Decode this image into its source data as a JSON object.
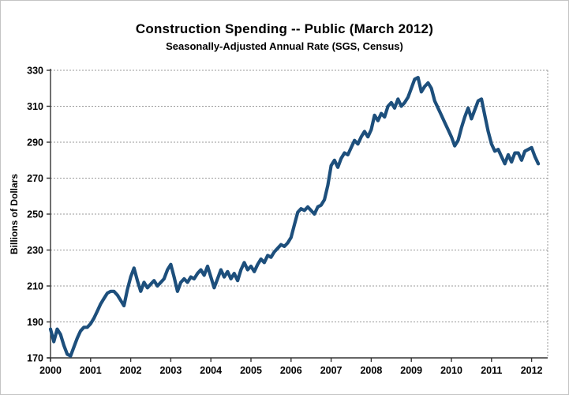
{
  "header": {
    "title": "Construction Spending -- Public (March 2012)",
    "subtitle": "Seasonally-Adjusted Annual Rate (SGS, Census)"
  },
  "chart_data": {
    "type": "line",
    "title": "Construction Spending -- Public (March 2012)",
    "subtitle": "Seasonally-Adjusted Annual Rate (SGS, Census)",
    "ylabel": "Billions of Dollars",
    "xlabel": "",
    "ylim": [
      170,
      330
    ],
    "y_ticks": [
      170,
      190,
      210,
      230,
      250,
      270,
      290,
      310,
      330
    ],
    "x_tick_labels": [
      "2000",
      "2001",
      "2002",
      "2003",
      "2004",
      "2005",
      "2006",
      "2007",
      "2008",
      "2009",
      "2010",
      "2011",
      "2012"
    ],
    "grid": "horizontal dotted gray lines at each y tick; dotted top and right plot border; solid black left and bottom axes",
    "legend": "none",
    "line_color": "#1d4f7c",
    "series": [
      {
        "name": "Public construction spending, seasonally-adjusted annual rate",
        "unit": "billions of dollars",
        "start_month": "2000-01",
        "end_month": "2012-03",
        "values": [
          186,
          179,
          186,
          183,
          177,
          172,
          171,
          176,
          181,
          185,
          187,
          187,
          189,
          192,
          196,
          200,
          203,
          206,
          207,
          207,
          205,
          202,
          199,
          208,
          215,
          220,
          213,
          207,
          212,
          209,
          211,
          213,
          210,
          212,
          214,
          219,
          222,
          215,
          207,
          212,
          214,
          212,
          215,
          214,
          217,
          219,
          216,
          221,
          215,
          209,
          214,
          219,
          215,
          218,
          214,
          217,
          213,
          219,
          223,
          219,
          221,
          218,
          222,
          225,
          223,
          227,
          226,
          229,
          231,
          233,
          232,
          234,
          237,
          244,
          251,
          253,
          252,
          254,
          252,
          250,
          254,
          255,
          258,
          266,
          277,
          280,
          276,
          281,
          284,
          283,
          287,
          291,
          289,
          293,
          296,
          293,
          297,
          305,
          302,
          306,
          304,
          310,
          312,
          309,
          314,
          310,
          312,
          315,
          320,
          325,
          326,
          318,
          321,
          323,
          320,
          313,
          309,
          305,
          301,
          297,
          293,
          288,
          291,
          298,
          304,
          309,
          303,
          308,
          313,
          314,
          305,
          296,
          289,
          285,
          286,
          282,
          278,
          283,
          279,
          284,
          284,
          280,
          285,
          286,
          287,
          282,
          278
        ]
      }
    ]
  },
  "colors": {
    "line": "#1d4f7c",
    "grid": "#999999",
    "axis": "#333333",
    "text": "#000000",
    "background": "#ffffff"
  }
}
